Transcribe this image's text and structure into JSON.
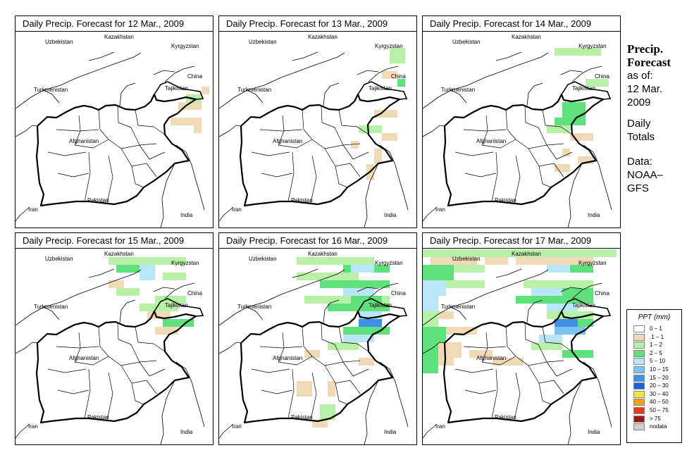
{
  "panels": [
    {
      "title": "Daily Precip. Forecast for  12 Mar., 2009"
    },
    {
      "title": "Daily Precip. Forecast for  13 Mar., 2009"
    },
    {
      "title": "Daily Precip. Forecast for  14 Mar., 2009"
    },
    {
      "title": "Daily Precip. Forecast for  15 Mar., 2009"
    },
    {
      "title": "Daily Precip. Forecast for  16 Mar., 2009"
    },
    {
      "title": "Daily Precip. Forecast for  17 Mar., 2009"
    }
  ],
  "map_labels": {
    "uzbekistan": "Uzbekistan",
    "kazakhstan": "Kazakhstan",
    "kyrgyzstan": "Kyrgyzstan",
    "china": "China",
    "tajikistan": "Tajikistan",
    "turkmenistan": "Turkmenistan",
    "afghanistan": "Afghanistan",
    "iran": "Iran",
    "pakistan": "Pakistan",
    "india": "India"
  },
  "sidebar": {
    "heading_1": "Precip.",
    "heading_2": "Forecast",
    "asof_1": "as of:",
    "asof_2": "12 Mar.",
    "asof_3": "2009",
    "daily_1": "Daily",
    "daily_2": "Totals",
    "data_1": "Data:",
    "data_2": "NOAA–",
    "data_3": "GFS"
  },
  "legend": {
    "title": "PPT (mm)",
    "items": [
      {
        "label": "0 – 1",
        "color": "#ffffff"
      },
      {
        "label": ".1 – 1",
        "color": "#f0d9b5"
      },
      {
        "label": "1 – 2",
        "color": "#b8f0a8"
      },
      {
        "label": "2 – 5",
        "color": "#5ee07a"
      },
      {
        "label": "5 – 10",
        "color": "#b9e6f7"
      },
      {
        "label": "10 – 15",
        "color": "#7cc3f2"
      },
      {
        "label": "15 – 20",
        "color": "#3f8fe6"
      },
      {
        "label": "20 – 30",
        "color": "#1f5fd6"
      },
      {
        "label": "30 – 40",
        "color": "#f4e24a"
      },
      {
        "label": "40 – 50",
        "color": "#f0a020"
      },
      {
        "label": "50 – 75",
        "color": "#e63a1e"
      },
      {
        "label": "> 75",
        "color": "#9a1a1a"
      },
      {
        "label": "nodata",
        "color": "#cfcfcf"
      }
    ]
  }
}
